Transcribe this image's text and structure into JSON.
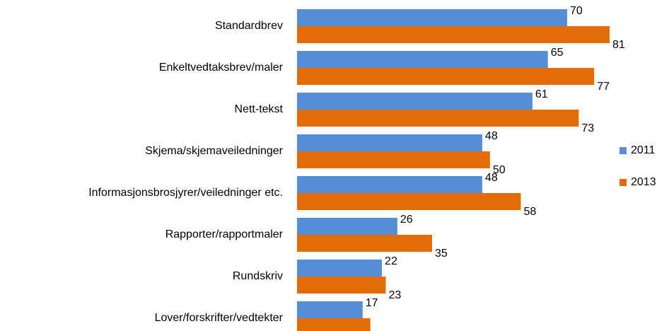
{
  "chart_data": {
    "type": "bar",
    "orientation": "horizontal",
    "categories": [
      "Standardbrev",
      "Enkeltvedtaksbrev/maler",
      "Nett-tekst",
      "Skjema/skjemaveiledninger",
      "Informasjonsbrosjyrer/veiledninger etc.",
      "Rapporter/rapportmaler",
      "Rundskriv",
      "Lover/forskrifter/vedtekter"
    ],
    "series": [
      {
        "name": "2011",
        "color": "#558ed5",
        "values": [
          70,
          65,
          61,
          48,
          48,
          26,
          22,
          17
        ]
      },
      {
        "name": "2013",
        "color": "#e36c09",
        "values": [
          81,
          77,
          73,
          50,
          58,
          35,
          23,
          19
        ]
      }
    ],
    "legend": "right"
  }
}
